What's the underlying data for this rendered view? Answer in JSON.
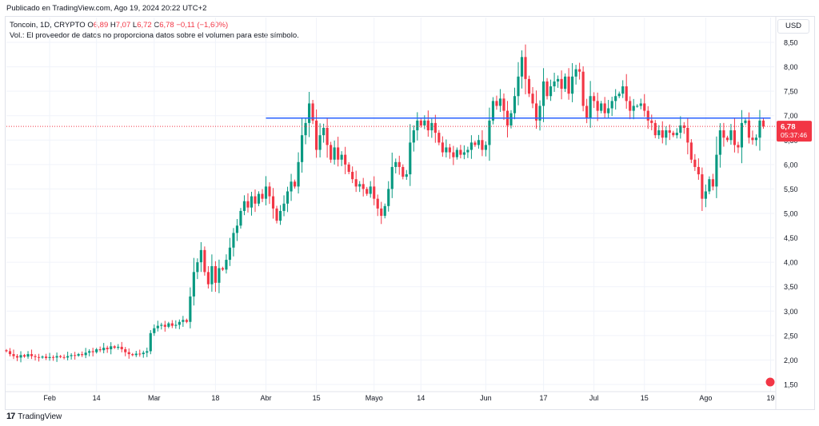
{
  "header": {
    "published": "Publicado en TradingView.com, Ago 19, 2024 20:22 UTC+2"
  },
  "legend": {
    "symbol": "Toncoin, 1D, CRYPTO",
    "o_label": "O",
    "o_value": "6,89",
    "h_label": "H",
    "h_value": "7,07",
    "l_label": "L",
    "l_value": "6,72",
    "c_label": "C",
    "c_value": "6,78",
    "change": "−0,11 (−1,60%)",
    "volume_note": "Vol.: El proveedor de datos no proporciona datos sobre el volumen para este símbolo."
  },
  "currency_button": "USD",
  "footer": {
    "brand": "TradingView",
    "logo_text": "17"
  },
  "colors": {
    "up": "#089981",
    "down": "#f23645",
    "hline": "#2962ff",
    "price_line": "#f23645"
  },
  "chart_data": {
    "type": "candlestick",
    "y_ticks": [
      "8,50",
      "8,00",
      "7,50",
      "7,00",
      "6,50",
      "6,00",
      "5,50",
      "5,00",
      "4,50",
      "4,00",
      "3,50",
      "3,00",
      "2,50",
      "2,00",
      "1,50"
    ],
    "x_ticks": [
      {
        "label": "Feb",
        "x": "2024-02-01"
      },
      {
        "label": "14",
        "x": "2024-02-14"
      },
      {
        "label": "Mar",
        "x": "2024-03-01"
      },
      {
        "label": "18",
        "x": "2024-03-18"
      },
      {
        "label": "Abr",
        "x": "2024-04-01"
      },
      {
        "label": "15",
        "x": "2024-04-15"
      },
      {
        "label": "Mayo",
        "x": "2024-05-01"
      },
      {
        "label": "14",
        "x": "2024-05-14"
      },
      {
        "label": "Jun",
        "x": "2024-06-01"
      },
      {
        "label": "17",
        "x": "2024-06-17"
      },
      {
        "label": "Jul",
        "x": "2024-07-01"
      },
      {
        "label": "15",
        "x": "2024-07-15"
      },
      {
        "label": "Ago",
        "x": "2024-08-01"
      },
      {
        "label": "19",
        "x": "2024-08-19"
      }
    ],
    "ylim": [
      1.45,
      8.75
    ],
    "xlim": [
      "2024-01-20",
      "2024-08-20"
    ],
    "horizontal_line": {
      "value": 6.95,
      "from": "2024-04-01",
      "to": "2024-08-19"
    },
    "last_price": {
      "value": 6.78,
      "label": "6,78",
      "countdown": "05:37:46"
    },
    "start_date": "2024-01-20",
    "closes": [
      2.18,
      2.12,
      2.08,
      2.05,
      2.1,
      2.07,
      2.12,
      2.08,
      2.06,
      2.05,
      2.07,
      2.04,
      2.06,
      2.05,
      2.08,
      2.06,
      2.05,
      2.08,
      2.1,
      2.09,
      2.12,
      2.1,
      2.15,
      2.18,
      2.16,
      2.22,
      2.2,
      2.25,
      2.22,
      2.28,
      2.25,
      2.27,
      2.22,
      2.16,
      2.12,
      2.1,
      2.13,
      2.12,
      2.15,
      2.18,
      2.55,
      2.65,
      2.7,
      2.72,
      2.68,
      2.75,
      2.7,
      2.72,
      2.78,
      2.82,
      2.78,
      3.3,
      3.8,
      4.0,
      4.25,
      3.8,
      3.55,
      3.92,
      3.58,
      3.88,
      3.85,
      4.05,
      4.3,
      4.6,
      4.75,
      5.05,
      5.25,
      5.12,
      5.35,
      5.2,
      5.4,
      5.3,
      5.55,
      5.35,
      5.1,
      4.85,
      5.05,
      5.2,
      5.45,
      5.65,
      5.55,
      6.05,
      6.6,
      6.85,
      7.25,
      6.9,
      6.3,
      6.6,
      6.75,
      6.4,
      6.1,
      6.35,
      6.1,
      6.2,
      6.0,
      5.85,
      5.7,
      5.55,
      5.6,
      5.5,
      5.4,
      5.55,
      5.3,
      5.1,
      4.95,
      5.15,
      5.5,
      5.95,
      6.05,
      5.95,
      5.75,
      5.8,
      6.45,
      6.7,
      6.9,
      6.8,
      6.9,
      6.7,
      6.85,
      6.65,
      6.45,
      6.25,
      6.35,
      6.25,
      6.15,
      6.3,
      6.2,
      6.25,
      6.3,
      6.45,
      6.4,
      6.5,
      6.3,
      6.4,
      6.9,
      7.3,
      7.2,
      7.35,
      7.1,
      6.8,
      7.05,
      7.4,
      7.8,
      8.2,
      7.75,
      7.45,
      7.25,
      6.9,
      7.2,
      7.7,
      7.4,
      7.6,
      7.7,
      7.75,
      7.55,
      7.8,
      7.45,
      7.8,
      7.95,
      7.9,
      7.2,
      6.95,
      7.4,
      7.3,
      7.1,
      7.25,
      7.05,
      7.15,
      7.3,
      7.4,
      7.45,
      7.6,
      7.3,
      7.1,
      7.2,
      7.2,
      7.25,
      7.1,
      6.9,
      6.85,
      6.6,
      6.7,
      6.55,
      6.7,
      6.65,
      6.6,
      6.65,
      6.8,
      6.75,
      6.45,
      6.1,
      5.95,
      5.8,
      5.3,
      5.45,
      5.7,
      5.55,
      6.2,
      6.7,
      6.55,
      6.5,
      6.7,
      6.4,
      6.35,
      6.85,
      6.9,
      6.55,
      6.5,
      6.55,
      6.9,
      6.78
    ],
    "open_first": 2.2
  }
}
